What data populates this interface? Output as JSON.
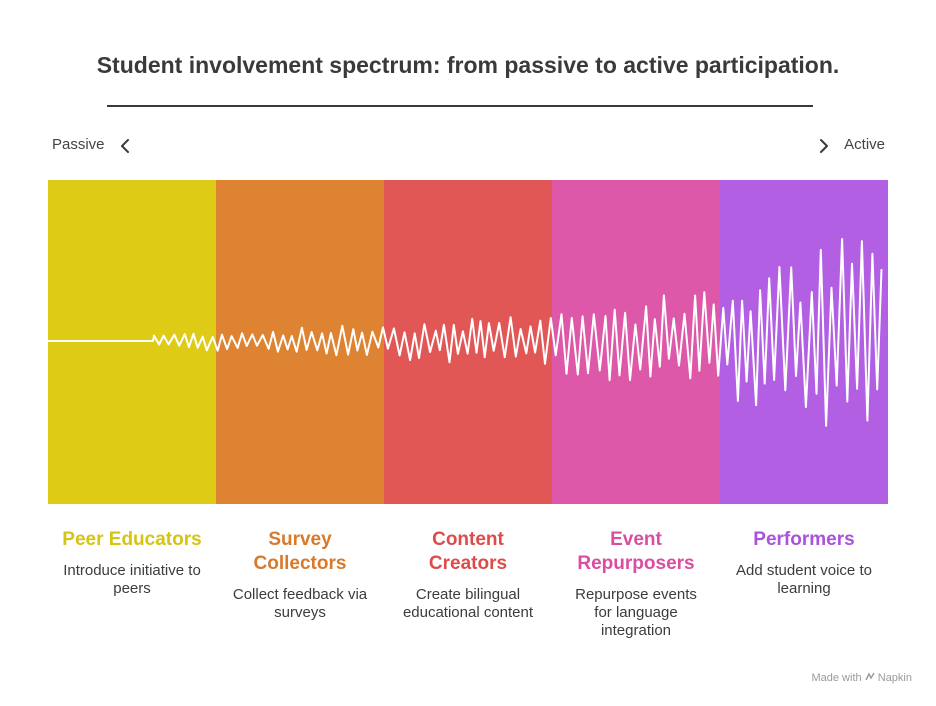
{
  "title": "Student involvement spectrum: from passive to active participation.",
  "spectrum": {
    "left_label": "Passive",
    "right_label": "Active"
  },
  "stages": [
    {
      "name": "Peer Educators",
      "description": "Introduce initiative to peers",
      "color": "#DDCB16",
      "name_color": "#D6C414"
    },
    {
      "name": "Survey Collectors",
      "description": "Collect feedback via surveys",
      "color": "#DD8331",
      "name_color": "#D9792A"
    },
    {
      "name": "Content Creators",
      "description": "Create bilingual educational content",
      "color": "#E15756",
      "name_color": "#DE4B4B"
    },
    {
      "name": "Event Repurposers",
      "description": "Repurpose events for language integration",
      "color": "#DD58A8",
      "name_color": "#D94EA0"
    },
    {
      "name": "Performers",
      "description": "Add student voice to learning",
      "color": "#B25FE3",
      "name_color": "#A953DD"
    }
  ],
  "footer": {
    "made_with": "Made with",
    "brand": "Napkin"
  }
}
